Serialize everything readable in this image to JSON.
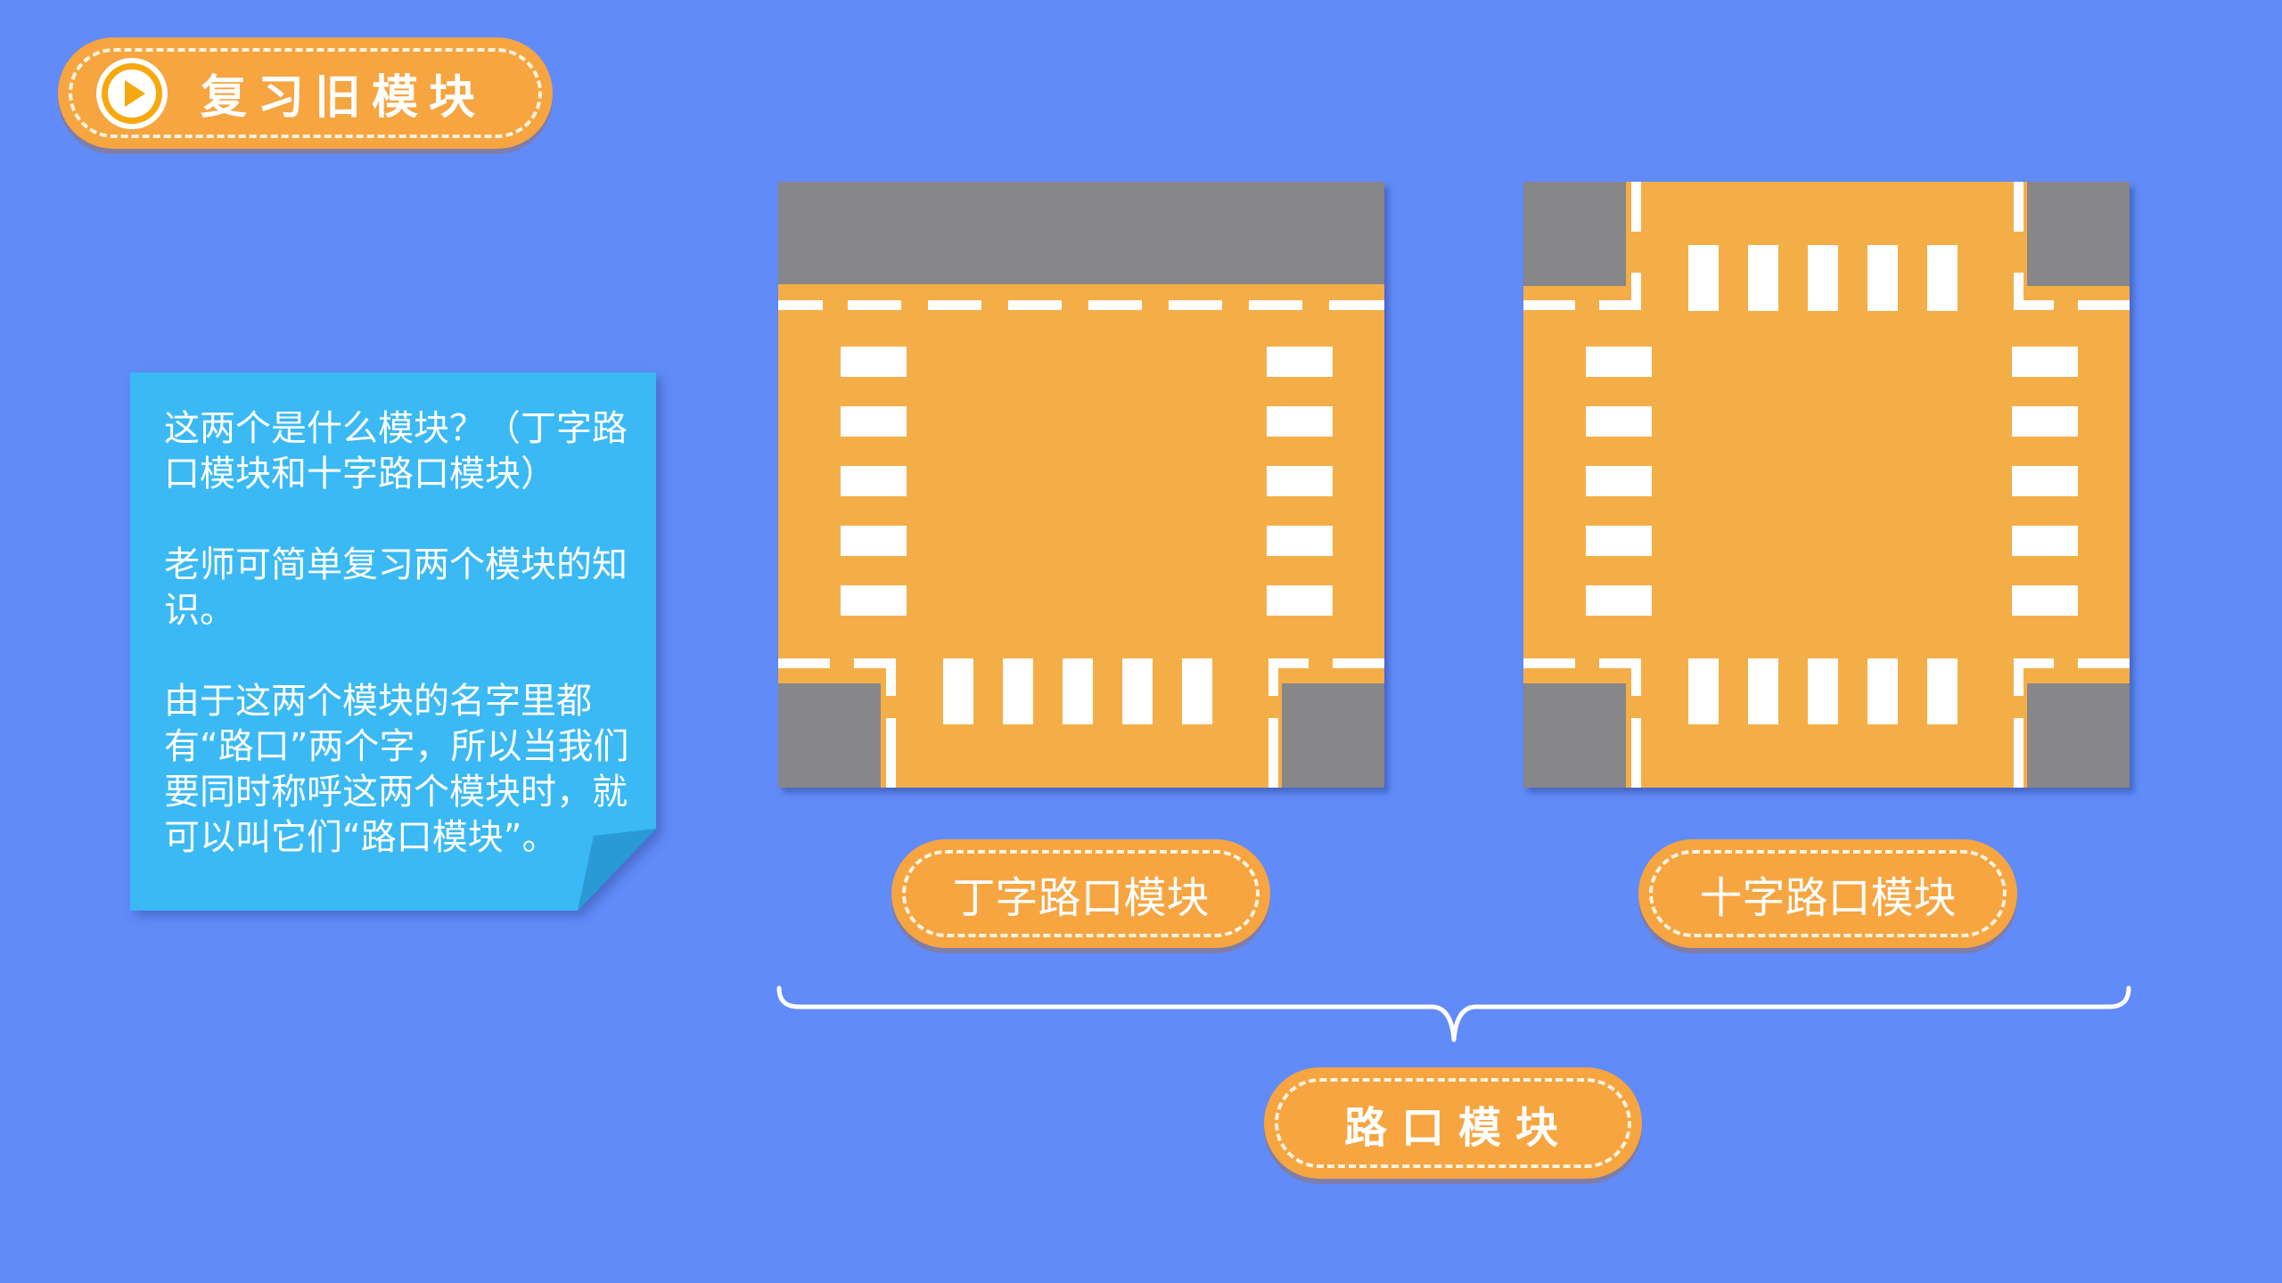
{
  "header": {
    "title": "复习旧模块"
  },
  "note": {
    "paragraphs": [
      "这两个是什么模块？（丁字路口模块和十字路口模块）",
      "老师可简单复习两个模块的知识。",
      "由于这两个模块的名字里都有“路口”两个字，所以当我们要同时称呼这两个模块时，就可以叫它们“路口模块”。"
    ]
  },
  "modules": [
    {
      "label": "丁字路口模块"
    },
    {
      "label": "十字路口模块"
    }
  ],
  "group_label": "路口模块",
  "colors": {
    "background": "#618bf8",
    "accent_orange": "#f6a541",
    "road": "#f4ae48",
    "sidewalk": "#878688",
    "note_blue": "#3ab9f4",
    "note_fold": "#2a9ad6"
  }
}
